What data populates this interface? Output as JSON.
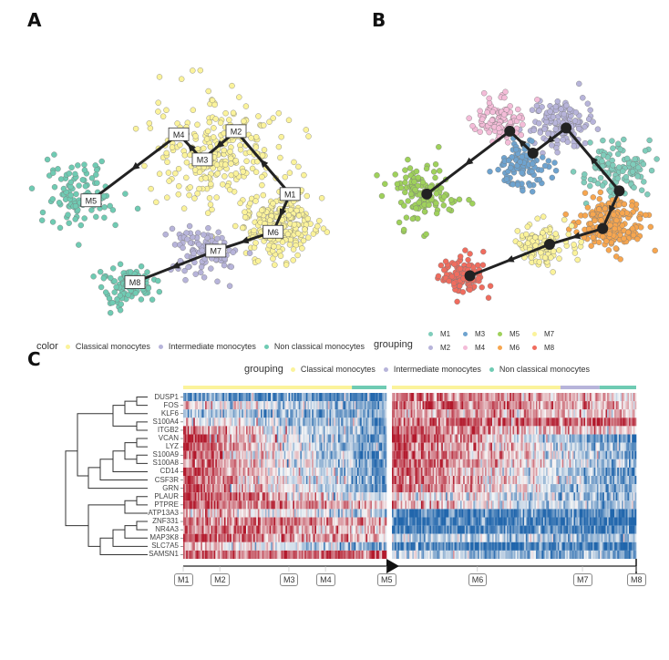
{
  "panels": {
    "a": "A",
    "b": "B",
    "c": "C"
  },
  "legend_a": {
    "title": "color",
    "items": [
      {
        "label": "Classical monocytes",
        "color": "#fbf39b"
      },
      {
        "label": "Intermediate monocytes",
        "color": "#b7b4da"
      },
      {
        "label": "Non classical monocytes",
        "color": "#6fcbb3"
      }
    ]
  },
  "legend_b": {
    "title": "grouping",
    "items": [
      {
        "label": "M1",
        "color": "#7fcdbb"
      },
      {
        "label": "M3",
        "color": "#6ea3cf"
      },
      {
        "label": "M5",
        "color": "#9fd15b"
      },
      {
        "label": "M7",
        "color": "#fbf39b"
      },
      {
        "label": "M2",
        "color": "#b7b4da"
      },
      {
        "label": "M4",
        "color": "#f4bcd8"
      },
      {
        "label": "M6",
        "color": "#f7a64f"
      },
      {
        "label": "M8",
        "color": "#f06c5e"
      }
    ]
  },
  "legend_c": {
    "title": "grouping",
    "items": [
      {
        "label": "Classical monocytes",
        "color": "#fbf39b"
      },
      {
        "label": "Intermediate monocytes",
        "color": "#b7b4da"
      },
      {
        "label": "Non classical monocytes",
        "color": "#6fcbb3"
      }
    ]
  },
  "chart_data": [
    {
      "type": "scatter",
      "title": "A",
      "description": "Cell embedding colored by monocyte subtype with trajectory M1→M8",
      "color_by": "color",
      "trajectory_nodes": [
        {
          "label": "M1",
          "x": 0.86,
          "y": 0.53
        },
        {
          "label": "M2",
          "x": 0.7,
          "y": 0.33
        },
        {
          "label": "M3",
          "x": 0.6,
          "y": 0.42
        },
        {
          "label": "M4",
          "x": 0.53,
          "y": 0.34
        },
        {
          "label": "M5",
          "x": 0.27,
          "y": 0.55
        },
        {
          "label": "M6",
          "x": 0.81,
          "y": 0.65
        },
        {
          "label": "M7",
          "x": 0.64,
          "y": 0.71
        },
        {
          "label": "M8",
          "x": 0.4,
          "y": 0.81
        }
      ],
      "trajectory_order": [
        "M1",
        "M2",
        "M3",
        "M4",
        "M5"
      ],
      "trajectory_branch2": [
        "M1",
        "M6",
        "M7",
        "M8"
      ],
      "clusters": [
        {
          "group": "Classical monocytes",
          "cx": 0.65,
          "cy": 0.4,
          "spread": 0.17,
          "n": 260
        },
        {
          "group": "Classical monocytes",
          "cx": 0.82,
          "cy": 0.63,
          "spread": 0.1,
          "n": 240
        },
        {
          "group": "Intermediate monocytes",
          "cx": 0.6,
          "cy": 0.72,
          "spread": 0.08,
          "n": 110
        },
        {
          "group": "Non classical monocytes",
          "cx": 0.23,
          "cy": 0.53,
          "spread": 0.11,
          "n": 110
        },
        {
          "group": "Non classical monocytes",
          "cx": 0.38,
          "cy": 0.82,
          "spread": 0.07,
          "n": 90
        }
      ]
    },
    {
      "type": "scatter",
      "title": "B",
      "description": "Same embedding colored by grouping M1–M8 with principal curve",
      "color_by": "grouping",
      "trajectory_nodes": [
        {
          "label": "M1",
          "x": 0.85,
          "y": 0.52
        },
        {
          "label": "M2",
          "x": 0.69,
          "y": 0.32
        },
        {
          "label": "M3",
          "x": 0.59,
          "y": 0.4
        },
        {
          "label": "M4",
          "x": 0.52,
          "y": 0.33
        },
        {
          "label": "M5",
          "x": 0.27,
          "y": 0.53
        },
        {
          "label": "M6",
          "x": 0.8,
          "y": 0.64
        },
        {
          "label": "M7",
          "x": 0.64,
          "y": 0.69
        },
        {
          "label": "M8",
          "x": 0.4,
          "y": 0.79
        }
      ],
      "clusters": [
        {
          "group": "M1",
          "cx": 0.84,
          "cy": 0.45,
          "spread": 0.09,
          "n": 120
        },
        {
          "group": "M2",
          "cx": 0.68,
          "cy": 0.3,
          "spread": 0.08,
          "n": 140
        },
        {
          "group": "M3",
          "cx": 0.56,
          "cy": 0.44,
          "spread": 0.07,
          "n": 100
        },
        {
          "group": "M4",
          "cx": 0.49,
          "cy": 0.3,
          "spread": 0.07,
          "n": 100
        },
        {
          "group": "M5",
          "cx": 0.25,
          "cy": 0.53,
          "spread": 0.1,
          "n": 120
        },
        {
          "group": "M6",
          "cx": 0.82,
          "cy": 0.63,
          "spread": 0.08,
          "n": 220
        },
        {
          "group": "M7",
          "cx": 0.62,
          "cy": 0.69,
          "spread": 0.07,
          "n": 110
        },
        {
          "group": "M8",
          "cx": 0.38,
          "cy": 0.79,
          "spread": 0.06,
          "n": 110
        }
      ]
    },
    {
      "type": "heatmap",
      "title": "C",
      "description": "Gene expression along pseudotime, two branches (M1→M5 and M5→M8), red=high, blue=low",
      "genes": [
        "DUSP1",
        "FOS",
        "KLF6",
        "S100A4",
        "ITGB2",
        "VCAN",
        "LYZ",
        "S100A9",
        "S100A8",
        "CD14",
        "CSF3R",
        "GRN",
        "PLAUR",
        "PTPRE",
        "ATP13A3",
        "ZNF331",
        "NR4A3",
        "MAP3K8",
        "SLC7A5",
        "SAMSN1"
      ],
      "color_scale": {
        "low": "#2166ac",
        "mid": "#f7f7f7",
        "high": "#b2182b"
      },
      "branch1": {
        "milestones": [
          {
            "label": "M1",
            "pos": 0.0
          },
          {
            "label": "M2",
            "pos": 0.18
          },
          {
            "label": "M3",
            "pos": 0.52
          },
          {
            "label": "M4",
            "pos": 0.7
          },
          {
            "label": "M5",
            "pos": 1.0
          }
        ],
        "annotation": [
          {
            "group": "Classical monocytes",
            "from": 0.0,
            "to": 0.83
          },
          {
            "group": "Non classical monocytes",
            "from": 0.83,
            "to": 1.0
          }
        ],
        "gene_trend_start_end": [
          [
            -0.6,
            -0.8
          ],
          [
            0.2,
            -0.6
          ],
          [
            -0.3,
            -0.6
          ],
          [
            0.1,
            -0.6
          ],
          [
            0.6,
            -0.7
          ],
          [
            0.9,
            -0.8
          ],
          [
            0.8,
            -0.7
          ],
          [
            0.7,
            -0.7
          ],
          [
            0.6,
            -0.6
          ],
          [
            0.8,
            -0.7
          ],
          [
            0.7,
            -0.6
          ],
          [
            0.8,
            -0.7
          ],
          [
            0.9,
            -0.3
          ],
          [
            0.7,
            0.3
          ],
          [
            0.4,
            -0.5
          ],
          [
            0.6,
            0.4
          ],
          [
            0.6,
            0.2
          ],
          [
            0.7,
            0.3
          ],
          [
            0.3,
            -0.6
          ],
          [
            0.6,
            0.7
          ]
        ]
      },
      "branch2": {
        "milestones": [
          {
            "label": "M5",
            "pos": 0.0
          },
          {
            "label": "M6",
            "pos": 0.35
          },
          {
            "label": "M7",
            "pos": 0.78
          },
          {
            "label": "M8",
            "pos": 1.0
          }
        ],
        "annotation": [
          {
            "group": "Classical monocytes",
            "from": 0.0,
            "to": 0.69
          },
          {
            "group": "Intermediate monocytes",
            "from": 0.69,
            "to": 0.85
          },
          {
            "group": "Non classical monocytes",
            "from": 0.85,
            "to": 1.0
          }
        ],
        "gene_trend_start_end": [
          [
            0.6,
            0.2
          ],
          [
            0.7,
            0.3
          ],
          [
            0.5,
            0.2
          ],
          [
            0.6,
            0.8
          ],
          [
            0.6,
            0.1
          ],
          [
            0.9,
            -0.8
          ],
          [
            0.7,
            -0.5
          ],
          [
            0.9,
            -0.6
          ],
          [
            0.8,
            -0.5
          ],
          [
            0.7,
            -0.7
          ],
          [
            0.7,
            -0.6
          ],
          [
            0.7,
            -0.6
          ],
          [
            0.2,
            -0.5
          ],
          [
            0.3,
            -0.5
          ],
          [
            -0.8,
            -0.8
          ],
          [
            -0.8,
            -0.9
          ],
          [
            -0.8,
            -0.8
          ],
          [
            -0.3,
            -0.4
          ],
          [
            -0.8,
            -0.9
          ],
          [
            -0.3,
            -0.6
          ]
        ]
      }
    }
  ]
}
